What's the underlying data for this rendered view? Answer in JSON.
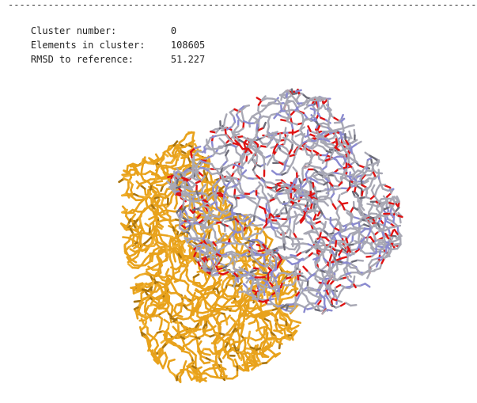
{
  "header": {
    "separator": "-------------------------------------------------------------------------------------"
  },
  "cluster_info": [
    {
      "label": "Cluster number:",
      "value": "0"
    },
    {
      "label": "Elements in cluster:",
      "value": "108605"
    },
    {
      "label": "RMSD to reference:",
      "value": "51.227"
    }
  ],
  "molecule_view": {
    "colors": {
      "reference_structure": "#e8a21c",
      "carbon": "#a8a8b4",
      "nitrogen": "#8a8ad0",
      "oxygen": "#e01010"
    }
  }
}
